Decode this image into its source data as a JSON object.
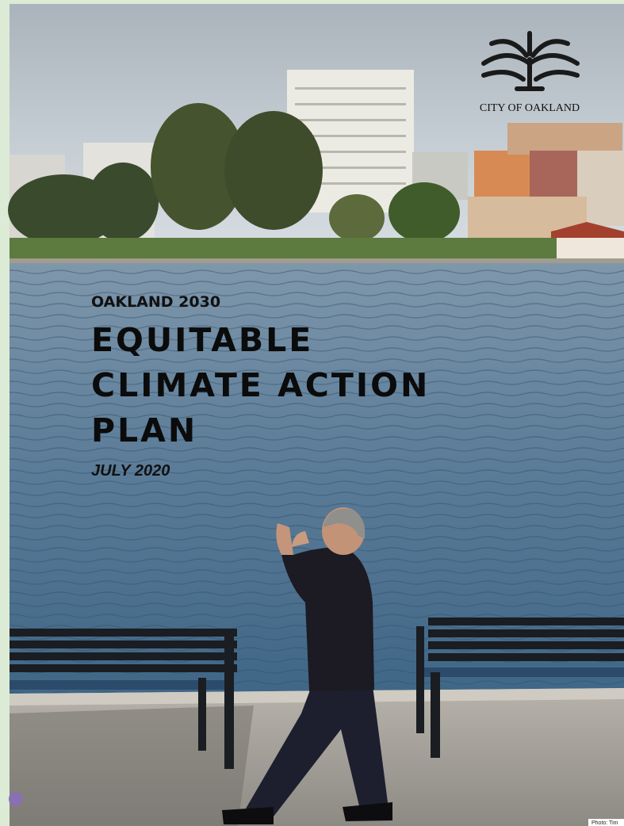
{
  "logo": {
    "text": "CITY OF OAKLAND"
  },
  "cover": {
    "kicker": "OAKLAND 2030",
    "title_lines": [
      "EQUITABLE",
      "CLIMATE ACTION",
      "PLAN"
    ],
    "date": "JULY 2020"
  },
  "photo_credit": "Photo: Tim"
}
